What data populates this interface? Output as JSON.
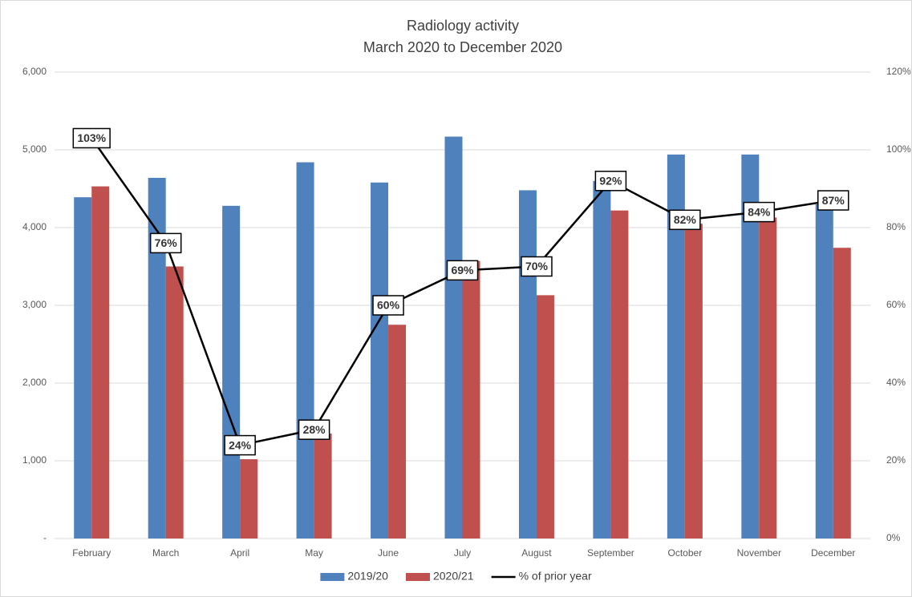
{
  "chart_data": {
    "type": "bar",
    "title": "Radiology activity",
    "subtitle": "March 2020 to December 2020",
    "categories": [
      "February",
      "March",
      "April",
      "May",
      "June",
      "July",
      "August",
      "September",
      "October",
      "November",
      "December"
    ],
    "series": [
      {
        "name": "2019/20",
        "color": "#4f81bd",
        "type": "bar",
        "values": [
          4390,
          4640,
          4280,
          4840,
          4580,
          5170,
          4480,
          4600,
          4940,
          4940,
          4300
        ]
      },
      {
        "name": "2020/21",
        "color": "#c0504d",
        "type": "bar",
        "values": [
          4530,
          3500,
          1020,
          1350,
          2750,
          3570,
          3130,
          4220,
          4050,
          4130,
          3740
        ]
      },
      {
        "name": "% of prior year",
        "color": "#000000",
        "type": "line",
        "axis": "y2",
        "values": [
          103,
          76,
          24,
          28,
          60,
          69,
          70,
          92,
          82,
          84,
          87
        ],
        "value_labels": [
          "103%",
          "76%",
          "24%",
          "28%",
          "60%",
          "69%",
          "70%",
          "92%",
          "82%",
          "84%",
          "87%"
        ]
      }
    ],
    "ylim": [
      0,
      6000
    ],
    "yticks": [
      {
        "value": 0,
        "label": "-"
      },
      {
        "value": 1000,
        "label": "1,000"
      },
      {
        "value": 2000,
        "label": "2,000"
      },
      {
        "value": 3000,
        "label": "3,000"
      },
      {
        "value": 4000,
        "label": "4,000"
      },
      {
        "value": 5000,
        "label": "5,000"
      },
      {
        "value": 6000,
        "label": "6,000"
      }
    ],
    "y2lim": [
      0,
      120
    ],
    "y2ticks": [
      {
        "value": 0,
        "label": "0%"
      },
      {
        "value": 20,
        "label": "20%"
      },
      {
        "value": 40,
        "label": "40%"
      },
      {
        "value": 60,
        "label": "60%"
      },
      {
        "value": 80,
        "label": "80%"
      },
      {
        "value": 100,
        "label": "100%"
      },
      {
        "value": 120,
        "label": "120%"
      }
    ],
    "grid": true,
    "legend": "bottom"
  }
}
